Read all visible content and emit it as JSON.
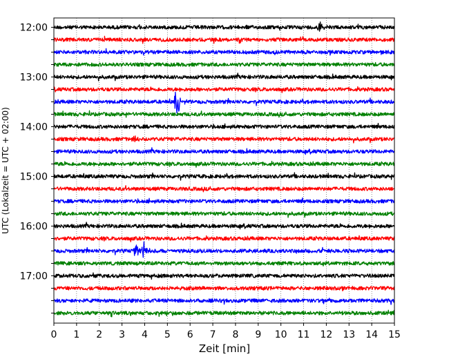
{
  "chart_data": {
    "type": "line",
    "xlabel": "Zeit  [min]",
    "ylabel": "UTC (Lokalzeit = UTC + 02:00)",
    "xlim": [
      0,
      15
    ],
    "x_ticks": [
      "0",
      "1",
      "2",
      "3",
      "4",
      "5",
      "6",
      "7",
      "8",
      "9",
      "10",
      "11",
      "12",
      "13",
      "14",
      "15"
    ],
    "y_ticks": [
      "12:00",
      "13:00",
      "14:00",
      "15:00",
      "16:00",
      "17:00"
    ],
    "grid": "vertical dotted lines at each minute",
    "colors": [
      "#000000",
      "#ff0000",
      "#0000ff",
      "#008000"
    ],
    "trace_rows": [
      "12:00",
      "12:15",
      "12:30",
      "12:45",
      "13:00",
      "13:15",
      "13:30",
      "13:45",
      "14:00",
      "14:15",
      "14:30",
      "14:45",
      "15:00",
      "15:15",
      "15:30",
      "15:45",
      "16:00",
      "16:15",
      "16:30",
      "16:45",
      "17:00",
      "17:15",
      "17:30",
      "17:45"
    ],
    "events": [
      {
        "row": "12:00",
        "minute": 11.7,
        "amplitude": 0.55
      },
      {
        "row": "12:15",
        "minute": 10.9,
        "amplitude": 0.25
      },
      {
        "row": "13:30",
        "minute": 5.4,
        "amplitude": 1.5
      },
      {
        "row": "14:15",
        "minute": 3.5,
        "amplitude": 0.25
      },
      {
        "row": "16:30",
        "minute": 3.6,
        "amplitude": 0.7
      },
      {
        "row": "16:30",
        "minute": 3.95,
        "amplitude": 0.8
      }
    ]
  }
}
